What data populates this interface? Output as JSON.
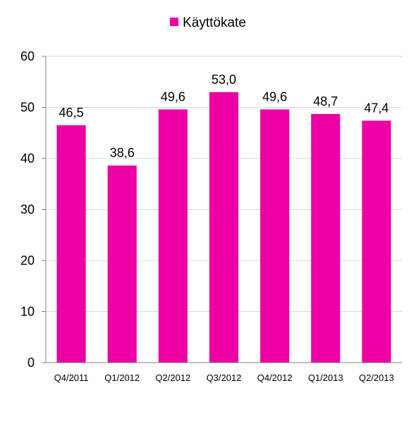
{
  "chart_data": {
    "type": "bar",
    "title": "",
    "xlabel": "",
    "ylabel": "",
    "categories": [
      "Q4/2011",
      "Q1/2012",
      "Q2/2012",
      "Q3/2012",
      "Q4/2012",
      "Q1/2013",
      "Q2/2013"
    ],
    "series": [
      {
        "name": "Käyttökate",
        "values": [
          46.5,
          38.6,
          49.6,
          53.0,
          49.6,
          48.7,
          47.4
        ],
        "labels": [
          "46,5",
          "38,6",
          "49,6",
          "53,0",
          "49,6",
          "48,7",
          "47,4"
        ],
        "color": "#ec00a4"
      }
    ],
    "ylim": [
      0,
      60
    ],
    "yticks": [
      0,
      10,
      20,
      30,
      40,
      50,
      60
    ],
    "grid": true,
    "legend_position": "top"
  }
}
